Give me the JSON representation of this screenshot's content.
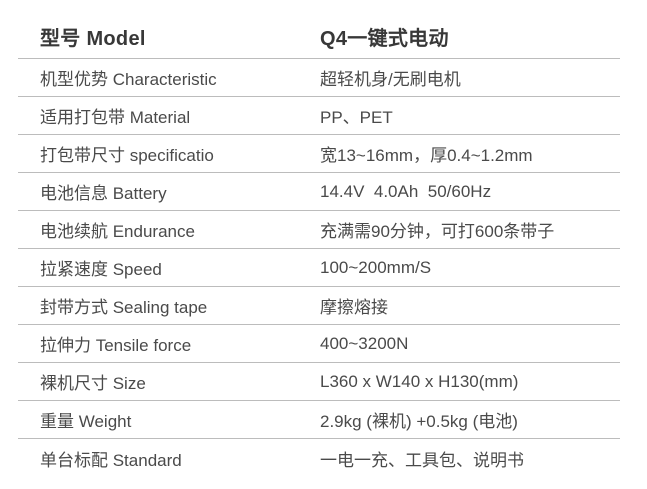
{
  "table": {
    "header": {
      "label": "型号 Model",
      "value": "Q4一键式电动"
    },
    "rows": [
      {
        "label": "机型优势 Characteristic",
        "value": "超轻机身/无刷电机"
      },
      {
        "label": "适用打包带 Material",
        "value": "PP、PET"
      },
      {
        "label": "打包带尺寸 specificatio",
        "value": "宽13~16mm，厚0.4~1.2mm"
      },
      {
        "label": "电池信息 Battery",
        "value": "14.4V  4.0Ah  50/60Hz"
      },
      {
        "label": "电池续航 Endurance",
        "value": "充满需90分钟，可打600条带子"
      },
      {
        "label": "拉紧速度 Speed",
        "value": "100~200mm/S"
      },
      {
        "label": "封带方式 Sealing tape",
        "value": "摩擦熔接"
      },
      {
        "label": "拉伸力 Tensile force",
        "value": "400~3200N"
      },
      {
        "label": "裸机尺寸 Size",
        "value": "L360 x W140 x H130(mm)"
      },
      {
        "label": "重量 Weight",
        "value": "2.9kg (裸机) +0.5kg (电池)"
      },
      {
        "label": "单台标配 Standard",
        "value": "一电一充、工具包、说明书"
      }
    ]
  },
  "colors": {
    "background": "#ffffff",
    "divider": "#bcbcbc",
    "header_text": "#383838",
    "body_text": "#4a4a4a"
  }
}
